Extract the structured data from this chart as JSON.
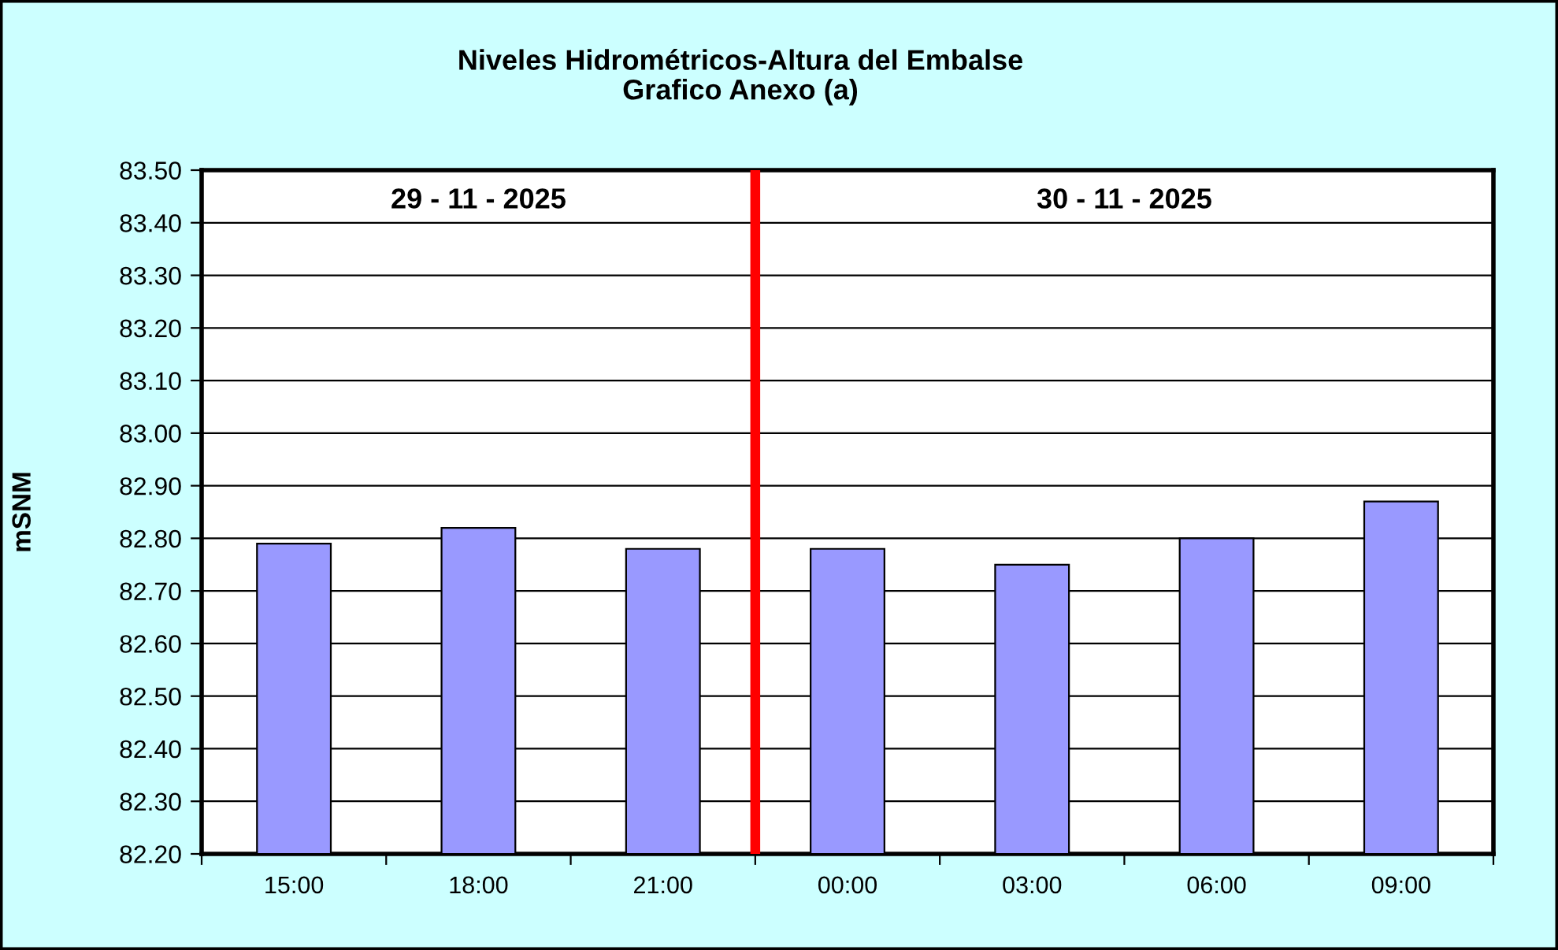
{
  "chart_data": {
    "type": "bar",
    "title": "Niveles Hidrométricos-Altura del Embalse\nGrafico Anexo (a)",
    "ylabel": "mSNM",
    "x": [
      "2025-11-29T15:00",
      "2025-11-29T18:00",
      "2025-11-29T21:00",
      "2025-11-30T00:00",
      "2025-11-30T03:00",
      "2025-11-30T06:00",
      "2025-11-30T09:00"
    ],
    "values": [
      82.79,
      82.82,
      82.78,
      82.78,
      82.75,
      82.8,
      82.87
    ],
    "color": "#9999ff",
    "xlim": [
      "2025-11-29T13:30",
      "2025-11-30T10:30"
    ],
    "xticks": [
      {
        "value": "2025-11-29T13:30",
        "label": null
      },
      {
        "value": "2025-11-29T15:00",
        "label": "15:00"
      },
      {
        "value": "2025-11-29T16:30",
        "label": null
      },
      {
        "value": "2025-11-29T18:00",
        "label": "18:00"
      },
      {
        "value": "2025-11-29T19:30",
        "label": null
      },
      {
        "value": "2025-11-29T21:00",
        "label": "21:00"
      },
      {
        "value": "2025-11-29T22:30",
        "label": null
      },
      {
        "value": "2025-11-30T00:00",
        "label": "00:00"
      },
      {
        "value": "2025-11-30T01:30",
        "label": null
      },
      {
        "value": "2025-11-30T03:00",
        "label": "03:00"
      },
      {
        "value": "2025-11-30T04:30",
        "label": null
      },
      {
        "value": "2025-11-30T06:00",
        "label": "06:00"
      },
      {
        "value": "2025-11-30T07:30",
        "label": null
      },
      {
        "value": "2025-11-30T09:00",
        "label": "09:00"
      },
      {
        "value": "2025-11-30T10:30",
        "label": null
      }
    ],
    "ylim": [
      82.2,
      83.5
    ],
    "yticks": [
      {
        "value": 82.2,
        "label": "82.20"
      },
      {
        "value": 82.3,
        "label": "82.30"
      },
      {
        "value": 82.4,
        "label": "82.40"
      },
      {
        "value": 82.5,
        "label": "82.50"
      },
      {
        "value": 82.6,
        "label": "82.60"
      },
      {
        "value": 82.7,
        "label": "82.70"
      },
      {
        "value": 82.8,
        "label": "82.80"
      },
      {
        "value": 82.9,
        "label": "82.90"
      },
      {
        "value": 83.0,
        "label": "83.00"
      },
      {
        "value": 83.1,
        "label": "83.10"
      },
      {
        "value": 83.2,
        "label": "83.20"
      },
      {
        "value": 83.3,
        "label": "83.30"
      },
      {
        "value": 83.4,
        "label": "83.40"
      },
      {
        "value": 83.5,
        "label": "83.50"
      }
    ],
    "grid": "y",
    "ref_lines": [
      {
        "axis": "x",
        "value": "2025-11-29T22:30",
        "color": "#ff0000"
      }
    ],
    "annotations": [
      "29 - 11 - 2025",
      "30 - 11 - 2025"
    ]
  }
}
